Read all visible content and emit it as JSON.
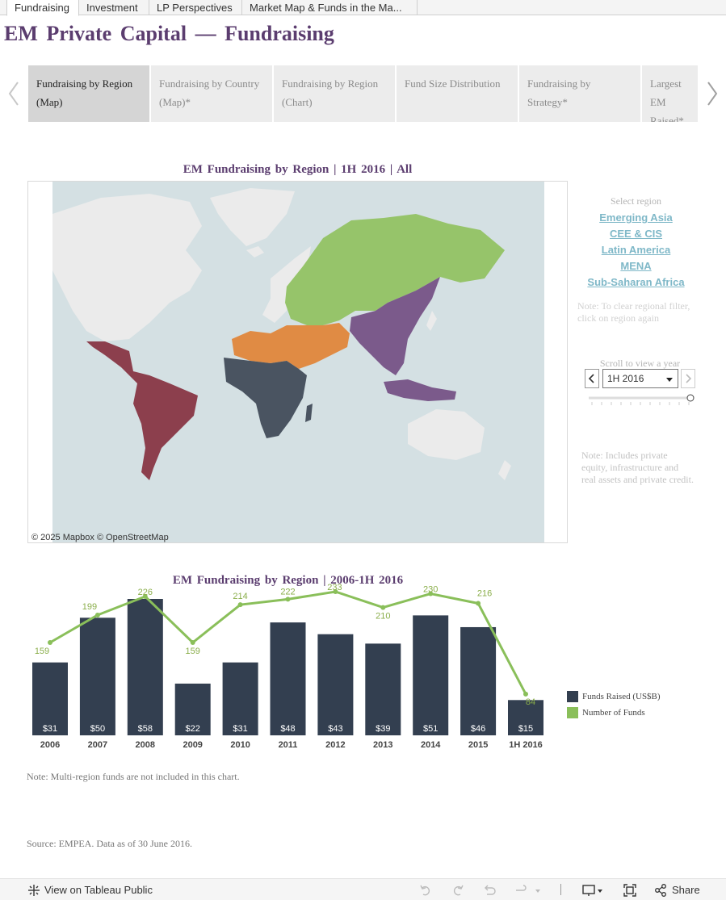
{
  "sheet_tabs": [
    {
      "label": "Fundraising",
      "active": true
    },
    {
      "label": "Investment"
    },
    {
      "label": "LP Perspectives"
    },
    {
      "label": "Market Map & Funds in the Ma..."
    }
  ],
  "page_title": "EM Private Capital — Fundraising",
  "nav_tabs": [
    {
      "label": "Fundraising by Region (Map)",
      "active": true
    },
    {
      "label": "Fundraising by Country (Map)*"
    },
    {
      "label": "Fundraising by Region (Chart)"
    },
    {
      "label": "Fund Size Distribution"
    },
    {
      "label": "Fundraising by Strategy*"
    },
    {
      "label": "Largest EM Raised*"
    }
  ],
  "map": {
    "title": "EM Fundraising by Region | 1H 2016 | All",
    "attribution": "© 2025 Mapbox © OpenStreetMap",
    "colors": {
      "ocean": "#d4e0e3",
      "land": "#ebebeb",
      "emerging_asia": "#7b5a8b",
      "cee_cis": "#96c46a",
      "latin_america": "#8c3f4d",
      "mena": "#e08b44",
      "sub_saharan_africa": "#4a5461"
    }
  },
  "region_filter": {
    "heading": "Select region",
    "regions": [
      "Emerging Asia",
      "CEE & CIS",
      "Latin America",
      "MENA",
      "Sub-Saharan Africa"
    ],
    "note": "Note: To clear regional filter, click on region again"
  },
  "year_control": {
    "label": "Scroll to view a year",
    "selected": "1H 2016"
  },
  "side_note": "Note: Includes private equity, infrastructure and real assets and private credit.",
  "chart_data": {
    "type": "bar",
    "title": "EM Fundraising by Region | 2006-1H 2016",
    "categories": [
      "2006",
      "2007",
      "2008",
      "2009",
      "2010",
      "2011",
      "2012",
      "2013",
      "2014",
      "2015",
      "1H 2016"
    ],
    "series": [
      {
        "name": "Funds Raised (US$B)",
        "type": "bar",
        "color": "#333f50",
        "values": [
          31,
          50,
          58,
          22,
          31,
          48,
          43,
          39,
          51,
          46,
          15
        ],
        "labels": [
          "$31",
          "$50",
          "$58",
          "$22",
          "$31",
          "$48",
          "$43",
          "$39",
          "$51",
          "$46",
          "$15"
        ]
      },
      {
        "name": "Number of Funds",
        "type": "line",
        "color": "#8abf5a",
        "values": [
          159,
          199,
          226,
          159,
          214,
          222,
          233,
          210,
          230,
          216,
          84
        ]
      }
    ]
  },
  "chart_note": "Note: Multi-region funds are not included in this chart.",
  "source": "Source: EMPEA. Data as of 30 June 2016.",
  "toolbar": {
    "view_label": "View on Tableau Public",
    "share_label": "Share"
  }
}
